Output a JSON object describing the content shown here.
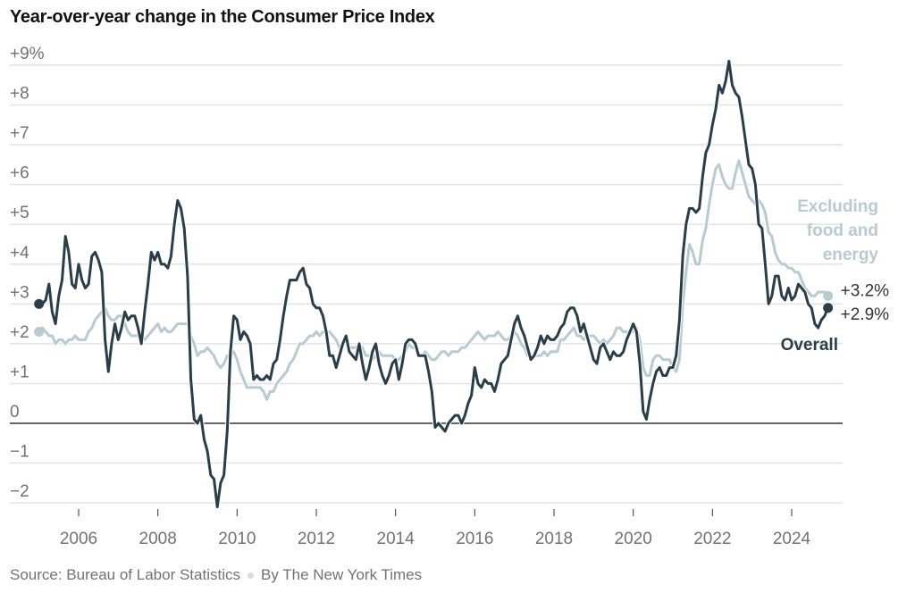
{
  "chart_data": {
    "type": "line",
    "title": "Year-over-year change in the Consumer Price Index",
    "xlabel": "",
    "ylabel": "",
    "ylim": [
      -2.2,
      9
    ],
    "xlim": [
      2005.0,
      2024.92
    ],
    "grid": true,
    "y_ticks": [
      {
        "value": 9,
        "label": "+9%"
      },
      {
        "value": 8,
        "label": "+8"
      },
      {
        "value": 7,
        "label": "+7"
      },
      {
        "value": 6,
        "label": "+6"
      },
      {
        "value": 5,
        "label": "+5"
      },
      {
        "value": 4,
        "label": "+4"
      },
      {
        "value": 3,
        "label": "+3"
      },
      {
        "value": 2,
        "label": "+2"
      },
      {
        "value": 1,
        "label": "+1"
      },
      {
        "value": 0,
        "label": "0"
      },
      {
        "value": -1,
        "label": "−1"
      },
      {
        "value": -2,
        "label": "−2"
      }
    ],
    "x_ticks": [
      {
        "value": 2006,
        "label": "2006"
      },
      {
        "value": 2008,
        "label": "2008"
      },
      {
        "value": 2010,
        "label": "2010"
      },
      {
        "value": 2012,
        "label": "2012"
      },
      {
        "value": 2014,
        "label": "2014"
      },
      {
        "value": 2016,
        "label": "2016"
      },
      {
        "value": 2018,
        "label": "2018"
      },
      {
        "value": 2020,
        "label": "2020"
      },
      {
        "value": 2022,
        "label": "2022"
      },
      {
        "value": 2024,
        "label": "2024"
      }
    ],
    "x_start": 2005.0,
    "x_step_months": 1,
    "series": [
      {
        "name": "Overall",
        "color": "#293e48",
        "end_label": "+2.9%",
        "values": [
          3.0,
          3.0,
          3.1,
          3.5,
          2.8,
          2.5,
          3.2,
          3.6,
          4.7,
          4.3,
          3.5,
          3.4,
          4.0,
          3.6,
          3.4,
          3.5,
          4.2,
          4.3,
          4.1,
          3.8,
          2.1,
          1.3,
          2.0,
          2.5,
          2.1,
          2.4,
          2.8,
          2.6,
          2.7,
          2.7,
          2.4,
          2.0,
          2.8,
          3.5,
          4.3,
          4.1,
          4.3,
          4.0,
          4.0,
          3.9,
          4.2,
          5.0,
          5.6,
          5.4,
          4.9,
          3.7,
          1.1,
          0.1,
          0.0,
          0.2,
          -0.4,
          -0.7,
          -1.3,
          -1.4,
          -2.1,
          -1.5,
          -1.3,
          -0.2,
          1.8,
          2.7,
          2.6,
          2.1,
          2.3,
          2.2,
          2.0,
          1.1,
          1.2,
          1.1,
          1.1,
          1.2,
          1.1,
          1.5,
          1.6,
          2.1,
          2.7,
          3.2,
          3.6,
          3.6,
          3.6,
          3.8,
          3.9,
          3.5,
          3.4,
          3.0,
          2.9,
          2.9,
          2.7,
          2.3,
          1.7,
          1.7,
          1.4,
          1.7,
          2.0,
          2.2,
          1.8,
          1.7,
          1.6,
          2.0,
          1.5,
          1.1,
          1.4,
          1.8,
          2.0,
          1.5,
          1.2,
          1.0,
          1.2,
          1.5,
          1.6,
          1.1,
          1.5,
          2.0,
          2.1,
          2.1,
          2.0,
          1.7,
          1.7,
          1.7,
          1.3,
          0.8,
          -0.1,
          0.0,
          -0.1,
          -0.2,
          0.0,
          0.1,
          0.2,
          0.2,
          0.0,
          0.2,
          0.5,
          0.7,
          1.4,
          1.0,
          0.9,
          1.1,
          1.0,
          1.0,
          0.8,
          1.1,
          1.5,
          1.6,
          1.7,
          2.1,
          2.5,
          2.7,
          2.4,
          2.2,
          1.9,
          1.6,
          1.7,
          1.9,
          2.2,
          2.0,
          2.2,
          2.1,
          2.1,
          2.2,
          2.4,
          2.5,
          2.8,
          2.9,
          2.9,
          2.7,
          2.3,
          2.5,
          2.2,
          1.9,
          1.6,
          1.5,
          1.9,
          2.0,
          1.8,
          1.6,
          1.8,
          1.7,
          1.7,
          1.8,
          2.1,
          2.3,
          2.5,
          2.3,
          1.5,
          0.3,
          0.1,
          0.6,
          1.0,
          1.3,
          1.4,
          1.2,
          1.2,
          1.4,
          1.4,
          1.7,
          2.6,
          4.2,
          5.0,
          5.4,
          5.4,
          5.3,
          5.4,
          6.2,
          6.8,
          7.0,
          7.5,
          7.9,
          8.5,
          8.3,
          8.6,
          9.1,
          8.5,
          8.3,
          8.2,
          7.7,
          7.1,
          6.5,
          6.4,
          6.0,
          5.0,
          4.9,
          4.0,
          3.0,
          3.2,
          3.7,
          3.7,
          3.2,
          3.1,
          3.4,
          3.1,
          3.2,
          3.5,
          3.4,
          3.3,
          3.0,
          2.9,
          2.5,
          2.4,
          2.6,
          2.7,
          2.9
        ]
      },
      {
        "name": "Excluding food and energy",
        "label_lines": [
          "Excluding",
          "food and",
          "energy"
        ],
        "color": "#b7cbd0",
        "end_label": "+3.2%",
        "values": [
          2.3,
          2.4,
          2.3,
          2.2,
          2.2,
          2.0,
          2.1,
          2.1,
          2.0,
          2.1,
          2.1,
          2.2,
          2.1,
          2.1,
          2.1,
          2.3,
          2.4,
          2.6,
          2.7,
          2.8,
          2.9,
          2.7,
          2.6,
          2.6,
          2.7,
          2.7,
          2.5,
          2.3,
          2.2,
          2.2,
          2.2,
          2.1,
          2.1,
          2.2,
          2.3,
          2.4,
          2.5,
          2.3,
          2.4,
          2.3,
          2.3,
          2.4,
          2.5,
          2.5,
          2.5,
          2.5,
          2.2,
          2.0,
          1.7,
          1.8,
          1.8,
          1.9,
          1.8,
          1.7,
          1.5,
          1.4,
          1.5,
          1.7,
          1.7,
          1.8,
          1.6,
          1.3,
          1.1,
          0.9,
          0.9,
          0.9,
          0.9,
          0.9,
          0.8,
          0.6,
          0.8,
          0.8,
          1.0,
          1.1,
          1.2,
          1.3,
          1.5,
          1.6,
          1.8,
          2.0,
          2.0,
          2.1,
          2.2,
          2.2,
          2.3,
          2.2,
          2.3,
          2.3,
          2.3,
          2.2,
          2.1,
          1.9,
          2.0,
          2.0,
          1.9,
          1.9,
          1.9,
          2.0,
          1.9,
          1.7,
          1.7,
          1.6,
          1.7,
          1.8,
          1.7,
          1.7,
          1.7,
          1.7,
          1.6,
          1.6,
          1.7,
          1.8,
          2.0,
          1.9,
          1.9,
          1.7,
          1.7,
          1.8,
          1.7,
          1.6,
          1.6,
          1.7,
          1.8,
          1.8,
          1.7,
          1.8,
          1.8,
          1.8,
          1.9,
          1.9,
          2.0,
          2.1,
          2.2,
          2.3,
          2.2,
          2.1,
          2.2,
          2.2,
          2.2,
          2.3,
          2.2,
          2.1,
          2.1,
          2.2,
          2.3,
          2.2,
          2.0,
          1.9,
          1.7,
          1.7,
          1.7,
          1.7,
          1.7,
          1.8,
          1.7,
          1.8,
          1.8,
          1.8,
          2.1,
          2.1,
          2.2,
          2.3,
          2.4,
          2.2,
          2.2,
          2.1,
          2.2,
          2.2,
          2.2,
          2.1,
          2.0,
          2.1,
          2.0,
          2.1,
          2.2,
          2.4,
          2.4,
          2.3,
          2.3,
          2.3,
          2.3,
          2.4,
          2.1,
          1.4,
          1.2,
          1.2,
          1.6,
          1.7,
          1.7,
          1.6,
          1.6,
          1.6,
          1.4,
          1.3,
          1.6,
          3.0,
          3.8,
          4.5,
          4.3,
          4.0,
          4.0,
          4.6,
          4.9,
          5.5,
          6.0,
          6.4,
          6.5,
          6.2,
          6.0,
          5.9,
          5.9,
          6.3,
          6.6,
          6.3,
          6.0,
          5.7,
          5.6,
          5.5,
          5.6,
          5.5,
          5.3,
          4.8,
          4.7,
          4.3,
          4.1,
          4.0,
          4.0,
          3.9,
          3.9,
          3.8,
          3.8,
          3.6,
          3.4,
          3.3,
          3.2,
          3.2,
          3.3,
          3.3,
          3.3,
          3.2
        ]
      }
    ],
    "annotations": [
      {
        "text": "Overall",
        "series": "Overall"
      },
      {
        "text": "Excluding food and energy",
        "series": "Excluding food and energy"
      }
    ]
  },
  "source": {
    "text": "Source: Bureau of Labor Statistics",
    "byline": "By The New York Times"
  }
}
